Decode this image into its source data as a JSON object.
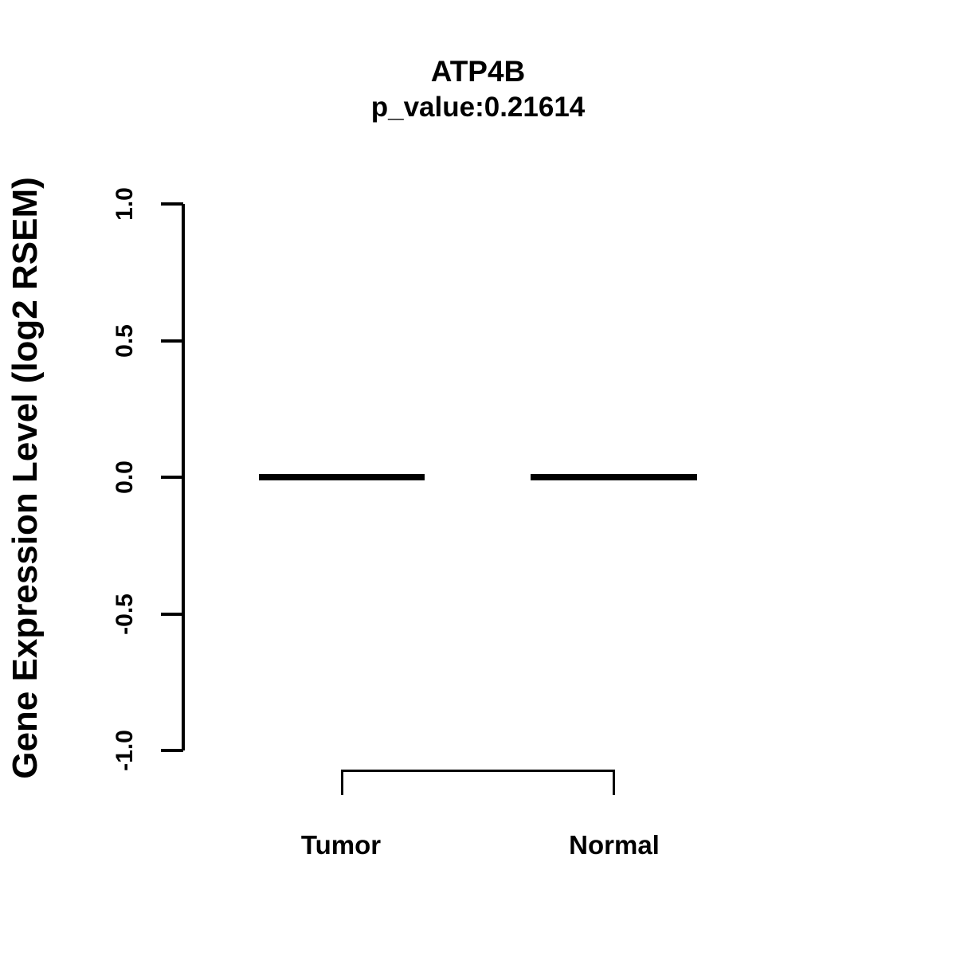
{
  "chart_data": {
    "type": "boxplot",
    "title": "ATP4B",
    "subtitle": "p_value:0.21614",
    "gene": "ATP4B",
    "p_value": 0.21614,
    "ylabel": "Gene Expression Level (log2 RSEM)",
    "xlabel": "",
    "categories": [
      "Tumor",
      "Normal"
    ],
    "series": [
      {
        "name": "Tumor",
        "median": 0.0,
        "q1": 0.0,
        "q3": 0.0,
        "min": 0.0,
        "max": 0.0
      },
      {
        "name": "Normal",
        "median": 0.0,
        "q1": 0.0,
        "q3": 0.0,
        "min": 0.0,
        "max": 0.0
      }
    ],
    "ylim": [
      -1.0,
      1.0
    ],
    "yticks": [
      1.0,
      0.5,
      0.0,
      -0.5,
      -1.0
    ],
    "ytick_labels": [
      "1.0",
      "0.5",
      "0.0",
      "-0.5",
      "-1.0"
    ],
    "grid": false,
    "legend": "none",
    "annotations": [
      "comparison bracket between Tumor and Normal"
    ],
    "colors": {
      "foreground": "#000000",
      "background": "#ffffff"
    }
  }
}
